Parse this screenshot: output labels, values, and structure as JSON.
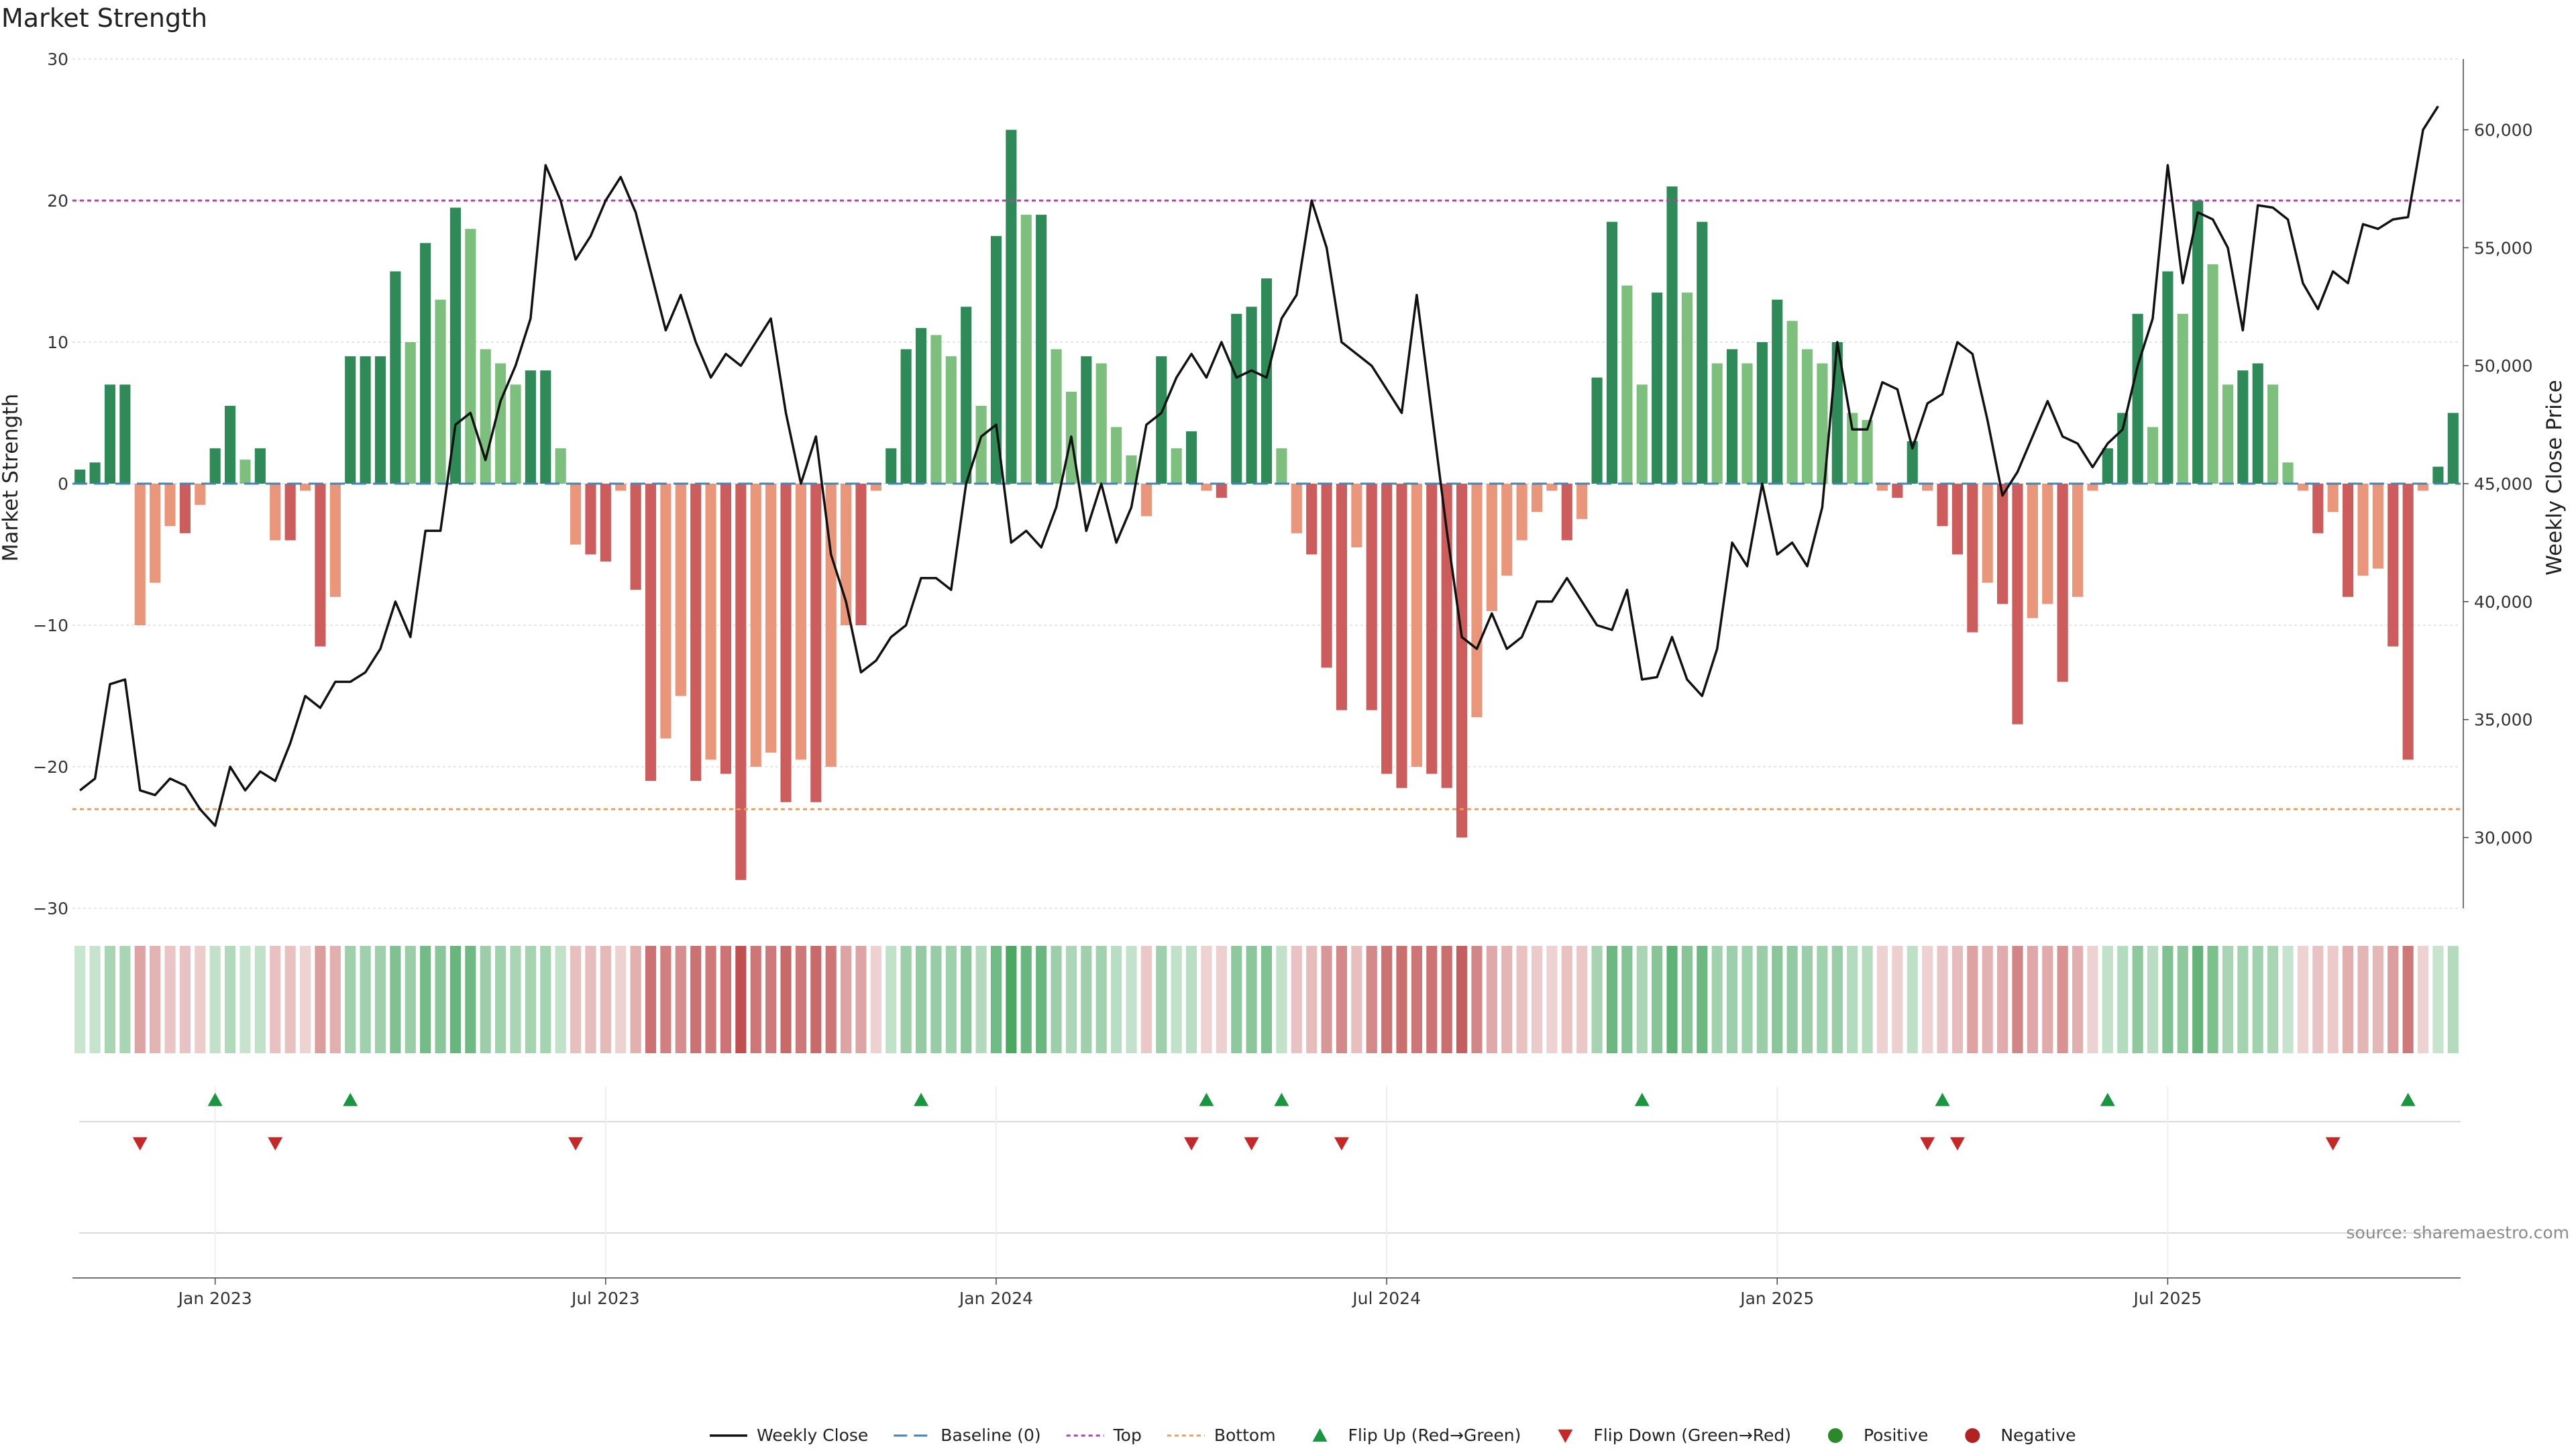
{
  "chart_data": {
    "type": "bar",
    "title": "Market Strength",
    "ylabel": "Market Strength",
    "y2label": "Weekly Close Price",
    "ylim": [
      -30,
      30
    ],
    "y2lim": [
      27000,
      63000
    ],
    "yticks": [
      "30",
      "20",
      "10",
      "0",
      "−10",
      "−20",
      "−30"
    ],
    "yticks_values": [
      30,
      20,
      10,
      0,
      -10,
      -20,
      -30
    ],
    "y2ticks": [
      "60,000",
      "55,000",
      "50,000",
      "45,000",
      "40,000",
      "35,000",
      "30,000"
    ],
    "y2ticks_values": [
      60000,
      55000,
      50000,
      45000,
      40000,
      35000,
      30000
    ],
    "xticks": [
      "Jan 2023",
      "Jul 2023",
      "Jan 2024",
      "Jul 2024",
      "Jan 2025",
      "Jul 2025"
    ],
    "xticks_week_index": [
      9,
      35,
      61,
      87,
      113,
      139
    ],
    "reference_lines": {
      "baseline": 0,
      "top": 20,
      "bottom": -23
    },
    "series": [
      {
        "name": "Market Strength",
        "values": [
          1,
          1.5,
          7,
          7,
          -10,
          -7,
          -3,
          -3.5,
          -1.5,
          2.5,
          5.5,
          1.7,
          2.5,
          -4,
          -4,
          -0.5,
          -11.5,
          -8,
          9,
          9,
          9,
          15,
          10,
          17,
          13,
          19.5,
          18,
          9.5,
          8.5,
          7,
          8,
          8,
          2.5,
          -4.3,
          -5,
          -5.5,
          -0.5,
          -7.5,
          -21,
          -18,
          -15,
          -21,
          -19.5,
          -20.5,
          -28,
          -20,
          -19,
          -22.5,
          -19.5,
          -22.5,
          -20,
          -10,
          -10,
          -0.5,
          2.5,
          9.5,
          11,
          10.5,
          9,
          12.5,
          5.5,
          17.5,
          25,
          19,
          19,
          9.5,
          6.5,
          9,
          8.5,
          4,
          2,
          -2.3,
          9,
          2.5,
          3.7,
          -0.5,
          -1,
          12,
          12.5,
          14.5,
          2.5,
          -3.5,
          -5,
          -13,
          -16,
          -4.5,
          -16,
          -20.5,
          -21.5,
          -20,
          -20.5,
          -21.5,
          -25,
          -16.5,
          -9,
          -6.5,
          -4,
          -2,
          -0.5,
          -4,
          -2.5,
          7.5,
          18.5,
          14,
          7,
          13.5,
          21,
          13.5,
          18.5,
          8.5,
          9.5,
          8.5,
          10,
          13,
          11.5,
          9.5,
          8.5,
          10,
          5,
          4.5,
          -0.5,
          -1,
          3,
          -0.5,
          -3,
          -5,
          -10.5,
          -7,
          -8.5,
          -17,
          -9.5,
          -8.5,
          -14,
          -8,
          -0.5,
          2.5,
          5,
          12,
          4,
          15,
          12,
          20,
          15.5,
          7,
          8,
          8.5,
          7,
          1.5,
          -0.5,
          -3.5,
          -2,
          -8,
          -6.5,
          -6,
          -11.5,
          -19.5,
          -0.5,
          1.2,
          5
        ]
      },
      {
        "name": "Weekly Close",
        "values": [
          32000,
          32500,
          36500,
          36700,
          32000,
          31800,
          32500,
          32200,
          31200,
          30500,
          33000,
          32000,
          32800,
          32400,
          34000,
          36000,
          35500,
          36600,
          36600,
          37000,
          38000,
          40000,
          38500,
          43000,
          43000,
          47500,
          48000,
          46000,
          48500,
          50000,
          52000,
          58500,
          57000,
          54500,
          55500,
          57000,
          58000,
          56500,
          54000,
          51500,
          53000,
          51000,
          49500,
          50500,
          50000,
          51000,
          52000,
          48000,
          45000,
          47000,
          42000,
          40000,
          37000,
          37500,
          38500,
          39000,
          41000,
          41000,
          40500,
          45000,
          47000,
          47500,
          42500,
          43000,
          42300,
          44000,
          47000,
          43000,
          45000,
          42500,
          44000,
          47500,
          48000,
          49500,
          50500,
          49500,
          51000,
          49500,
          49800,
          49500,
          52000,
          53000,
          57000,
          55000,
          51000,
          50500,
          50000,
          49000,
          48000,
          53000,
          48000,
          43000,
          38500,
          38000,
          39500,
          38000,
          38500,
          40000,
          40000,
          41000,
          40000,
          39000,
          38800,
          40500,
          36700,
          36800,
          38500,
          36700,
          36000,
          38000,
          42500,
          41500,
          45000,
          42000,
          42500,
          41500,
          44000,
          51000,
          47300,
          47300,
          49300,
          49000,
          46500,
          48400,
          48800,
          51000,
          50500,
          47700,
          44500,
          45500,
          47000,
          48500,
          47000,
          46700,
          45700,
          46700,
          47300,
          50000,
          52000,
          58500,
          53500,
          56500,
          56200,
          55000,
          51500,
          56800,
          56700,
          56200,
          53500,
          52400,
          54000,
          53500,
          56000,
          55800,
          56200,
          56300,
          60000,
          61000
        ]
      },
      {
        "name": "Flip Up (Red→Green)",
        "week_index": [
          9,
          18,
          56,
          75,
          80,
          104,
          124,
          135,
          155
        ]
      },
      {
        "name": "Flip Down (Green→Red)",
        "week_index": [
          4,
          13,
          33,
          74,
          78,
          84,
          123,
          125,
          150
        ]
      }
    ],
    "legend": [
      "Weekly Close",
      "Baseline (0)",
      "Top",
      "Bottom",
      "Flip Up (Red→Green)",
      "Flip Down (Green→Red)",
      "Positive",
      "Negative"
    ],
    "legend_position": "bottom-center",
    "source": "source: sharemaestro.com",
    "colors": {
      "pos_strong": "#2e8b57",
      "pos_light": "#7dbf7d",
      "neg_strong": "#cd5c5c",
      "neg_light": "#e9967a",
      "top": "#b040b0",
      "bottom": "#e5a060",
      "baseline": "#4682b4",
      "flip_up": "#1a9641",
      "flip_down": "#c62828",
      "positive_dot": "#2a8a2a",
      "negative_dot": "#b22222"
    }
  }
}
